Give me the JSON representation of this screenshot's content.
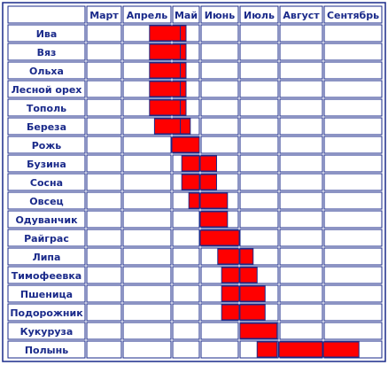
{
  "chart_data": {
    "type": "table",
    "months": [
      "Март",
      "Апрель",
      "Май",
      "Июнь",
      "Июль",
      "Август",
      "Сентябрь"
    ],
    "unit": "доля месяца (0 = начало марта, 7 = конец сентября)",
    "rows": [
      {
        "name": "Ива",
        "bloom": [
          [
            1.55,
            2.3
          ],
          [
            2.3,
            2.5
          ]
        ]
      },
      {
        "name": "Вяз",
        "bloom": [
          [
            1.55,
            2.3
          ],
          [
            2.3,
            2.5
          ]
        ]
      },
      {
        "name": "Ольха",
        "bloom": [
          [
            1.55,
            2.3
          ],
          [
            2.3,
            2.5
          ]
        ]
      },
      {
        "name": "Лесной орех",
        "bloom": [
          [
            1.55,
            2.3
          ],
          [
            2.3,
            2.5
          ]
        ]
      },
      {
        "name": "Тополь",
        "bloom": [
          [
            1.55,
            2.3
          ],
          [
            2.3,
            2.5
          ]
        ]
      },
      {
        "name": "Береза",
        "bloom": [
          [
            1.65,
            2.3
          ],
          [
            2.3,
            2.65
          ]
        ]
      },
      {
        "name": "Рожь",
        "bloom": [
          [
            2.0,
            2.97
          ]
        ]
      },
      {
        "name": "Бузина",
        "bloom": [
          [
            2.35,
            2.97
          ],
          [
            3.0,
            3.42
          ]
        ]
      },
      {
        "name": "Сосна",
        "bloom": [
          [
            2.35,
            2.97
          ],
          [
            3.0,
            3.42
          ]
        ]
      },
      {
        "name": "Овсец",
        "bloom": [
          [
            2.6,
            2.97
          ],
          [
            3.0,
            3.7
          ]
        ]
      },
      {
        "name": "Одуванчик",
        "bloom": [
          [
            3.0,
            3.7
          ]
        ]
      },
      {
        "name": "Райграс",
        "bloom": [
          [
            3.0,
            4.0
          ]
        ]
      },
      {
        "name": "Липа",
        "bloom": [
          [
            3.45,
            4.0
          ],
          [
            4.02,
            4.35
          ]
        ]
      },
      {
        "name": "Тимофеевка",
        "bloom": [
          [
            3.55,
            4.0
          ],
          [
            4.02,
            4.45
          ]
        ]
      },
      {
        "name": "Пшеница",
        "bloom": [
          [
            3.55,
            4.0
          ],
          [
            4.02,
            4.65
          ]
        ]
      },
      {
        "name": "Подорожник",
        "bloom": [
          [
            3.55,
            4.0
          ],
          [
            4.02,
            4.65
          ]
        ]
      },
      {
        "name": "Кукуруза",
        "bloom": [
          [
            4.02,
            4.95
          ]
        ]
      },
      {
        "name": "Полынь",
        "bloom": [
          [
            4.45,
            4.95
          ],
          [
            5.0,
            5.98
          ],
          [
            6.0,
            6.6
          ]
        ]
      }
    ],
    "colors": {
      "border": "#1a2a8a",
      "bloom": "#ff0000",
      "grid": "#1a2a8a",
      "label": "#1a2a8a"
    }
  }
}
